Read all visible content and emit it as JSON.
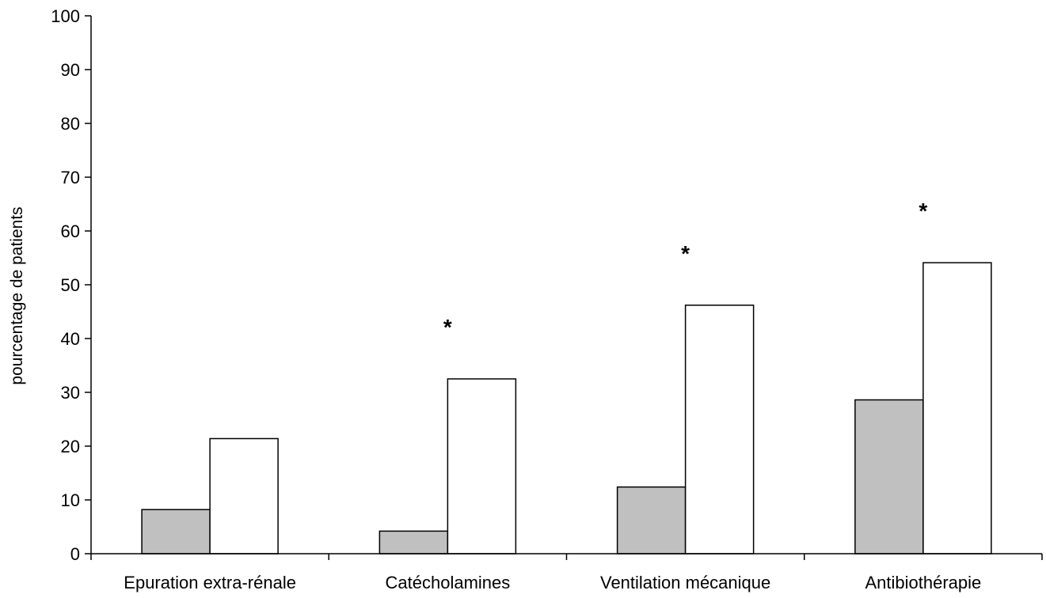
{
  "chart_data": {
    "type": "bar",
    "title": "",
    "xlabel": "",
    "ylabel": "pourcentage de patients",
    "ylim": [
      0,
      100
    ],
    "yticks": [
      0,
      10,
      20,
      30,
      40,
      50,
      60,
      70,
      80,
      90,
      100
    ],
    "grid": false,
    "legend": "none",
    "categories": [
      "Epuration extra-rénale",
      "Catécholamines",
      "Ventilation mécanique",
      "Antibiothérapie"
    ],
    "series": [
      {
        "fill": "#c0c0c0",
        "values": [
          8.2,
          4.2,
          12.4,
          28.6
        ]
      },
      {
        "fill": "#ffffff",
        "values": [
          21.4,
          32.5,
          46.2,
          54.1
        ]
      }
    ],
    "annotations": [
      {
        "category": "Epuration extra-rénale",
        "text": ""
      },
      {
        "category": "Catécholamines",
        "text": "*"
      },
      {
        "category": "Ventilation mécanique",
        "text": "*"
      },
      {
        "category": "Antibiothérapie",
        "text": "*"
      }
    ]
  }
}
